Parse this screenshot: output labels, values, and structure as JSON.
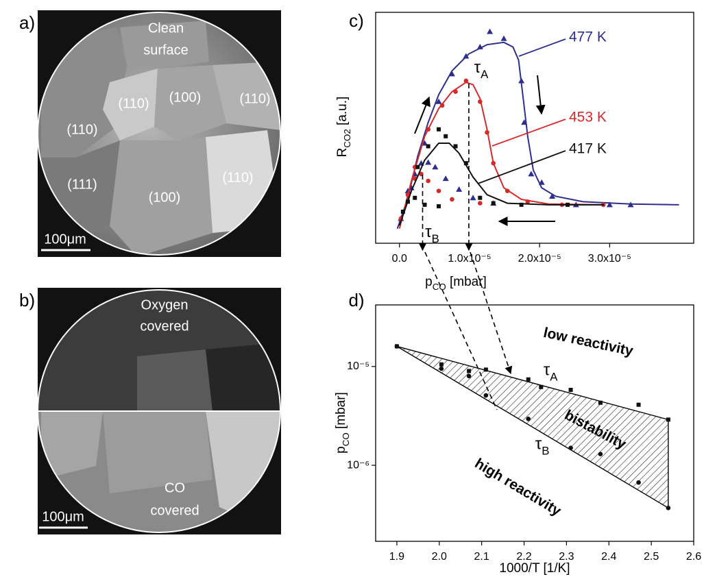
{
  "images": [
    {
      "letter": "a)",
      "caption": [
        "Clean",
        "surface"
      ],
      "grain_labels": [
        "(110)",
        "(100)",
        "(110)",
        "(110)",
        "(111)",
        "(100)",
        "(110)"
      ],
      "scale_bar": "100μm"
    },
    {
      "letter": "b)",
      "top_caption": [
        "Oxygen",
        "covered"
      ],
      "bottom_caption": [
        "CO",
        "covered"
      ],
      "scale_bar": "100μm"
    }
  ],
  "chart_data": [
    {
      "type": "scatter",
      "panel": "c)",
      "x_label": [
        "p",
        "CO",
        " [mbar]"
      ],
      "y_label": [
        "R",
        "CO2",
        " [a.u.]"
      ],
      "xlim": [
        -3.4e-06,
        4.2e-05
      ],
      "xticks": [
        {
          "value": 0,
          "label": "0.0"
        },
        {
          "value": 1e-05,
          "label": "1.0x10⁻⁵"
        },
        {
          "value": 2e-05,
          "label": "2.0x10⁻⁵"
        },
        {
          "value": 3e-05,
          "label": "3.0x10⁻⁵"
        }
      ],
      "ylim": [
        -0.5,
        2.5
      ],
      "series": [
        {
          "name": "477 K",
          "color": "#2e2e8c",
          "marker": "triangle",
          "x": [
            1.7e-06,
            3.6e-06,
            5.6e-06,
            7.5e-06,
            9.5e-06,
            1.15e-05,
            1.29e-05,
            1.49e-05,
            1.74e-05,
            1.78e-05,
            1.88e-05,
            2.03e-05,
            2.18e-05,
            2.52e-05,
            3e-05,
            3.3e-05,
            1.34e-05,
            1.05e-05,
            8.5e-06,
            6.6e-06,
            5.1e-06,
            4.1e-06,
            3.1e-06,
            2.2e-06,
            1.2e-06,
            2e-07
          ],
          "values": [
            0.22,
            0.8,
            1.34,
            1.7,
            1.93,
            2.05,
            2.25,
            2.16,
            1.61,
            1.07,
            0.4,
            0.29,
            0.11,
            0.0,
            0.0,
            0.0,
            0.02,
            0.09,
            0.2,
            0.34,
            0.49,
            0.55,
            0.54,
            0.4,
            0.18,
            -0.18
          ],
          "fit_x": [
            -3e-07,
            1.2e-06,
            2.6e-06,
            4.1e-06,
            5.6e-06,
            7.5e-06,
            9.9e-06,
            1.25e-05,
            1.49e-05,
            1.62e-05,
            1.7e-05,
            1.76e-05,
            1.83e-05,
            1.91e-05,
            2.03e-05,
            2.23e-05,
            2.62e-05,
            3.3e-05,
            3.99e-05
          ],
          "fit_values": [
            -0.31,
            0.09,
            0.63,
            1.07,
            1.43,
            1.74,
            1.96,
            2.08,
            2.11,
            2.05,
            1.88,
            1.43,
            0.89,
            0.45,
            0.22,
            0.11,
            0.04,
            0.01,
            0.0
          ]
        },
        {
          "name": "453 K",
          "color": "#d42a2a",
          "marker": "circle",
          "x": [
            2.2e-06,
            4.1e-06,
            6.1e-06,
            8e-06,
            9.5e-06,
            1.15e-05,
            1.25e-05,
            1.34e-05,
            1.54e-05,
            1.83e-05,
            2.32e-05,
            2.91e-05,
            1.15e-05,
            7.5e-06,
            5.6e-06,
            4.1e-06,
            3.1e-06,
            2.2e-06,
            1.2e-06,
            2e-07
          ],
          "values": [
            0.49,
            0.98,
            1.29,
            1.47,
            1.61,
            1.34,
            0.94,
            0.54,
            0.18,
            0.04,
            0.0,
            0.0,
            0.02,
            0.07,
            0.18,
            0.31,
            0.4,
            0.34,
            0.13,
            -0.18
          ],
          "fit_x": [
            0,
            1.7e-06,
            3.6e-06,
            5.6e-06,
            7.5e-06,
            9.5e-06,
            1.05e-05,
            1.15e-05,
            1.25e-05,
            1.34e-05,
            1.49e-05,
            1.74e-05,
            2.13e-05,
            2.92e-05
          ],
          "fit_values": [
            -0.31,
            0.31,
            0.89,
            1.25,
            1.47,
            1.59,
            1.56,
            1.38,
            0.98,
            0.54,
            0.22,
            0.07,
            0.01,
            0.0
          ]
        },
        {
          "name": "417 K",
          "color": "#111111",
          "marker": "square",
          "x": [
            2.6e-06,
            4.1e-06,
            5.6e-06,
            6.6e-06,
            8e-06,
            9.5e-06,
            1.15e-05,
            1.34e-05,
            1.74e-05,
            2.4e-05,
            5.6e-06,
            3.6e-06,
            2.2e-06,
            1.2e-06,
            5e-07
          ],
          "values": [
            0.49,
            0.76,
            0.98,
            0.89,
            0.76,
            0.54,
            0.09,
            0.02,
            0.0,
            0.0,
            -0.02,
            0.0,
            0.09,
            0.04,
            -0.09
          ],
          "fit_x": [
            0,
            1.7e-06,
            3.6e-06,
            5.6e-06,
            7.1e-06,
            8.5e-06,
            1.05e-05,
            1.25e-05,
            1.54e-05,
            2.13e-05,
            2.92e-05
          ],
          "fit_values": [
            -0.27,
            0.18,
            0.58,
            0.8,
            0.8,
            0.67,
            0.36,
            0.13,
            0.02,
            0.0,
            0.0
          ]
        }
      ],
      "annotations": [
        {
          "label": [
            "τ",
            "A"
          ],
          "x": 9.9e-06
        },
        {
          "label": [
            "τ",
            "B"
          ],
          "x": 3.3e-06
        }
      ]
    },
    {
      "type": "scatter",
      "panel": "d)",
      "x_label": [
        "1000/T [1/K]"
      ],
      "y_label": [
        "p",
        "CO",
        " [mbar]"
      ],
      "xlim": [
        1.85,
        2.6
      ],
      "xticks": [
        1.9,
        {
          "value": 2,
          "label": "2.0"
        },
        2.1,
        2.2,
        2.3,
        2.4,
        2.5,
        2.6
      ],
      "ylog": true,
      "ylim": [
        1.7e-07,
        4.2e-05
      ],
      "yticks": [
        {
          "value": 1e-05,
          "label": "10⁻⁵"
        },
        {
          "value": 1e-06,
          "label": "10⁻⁶"
        }
      ],
      "series": [
        {
          "color": "#111111",
          "marker": "square",
          "x": [
            1.9,
            2.005,
            2.07,
            2.11,
            2.21,
            2.24,
            2.31,
            2.38,
            2.47,
            2.54
          ],
          "values": [
            1.6e-05,
            1.05e-05,
            9e-06,
            9.3e-06,
            7.4e-06,
            6.2e-06,
            5.8e-06,
            4.3e-06,
            4.1e-06,
            2.9e-06
          ]
        },
        {
          "color": "#111111",
          "marker": "circle",
          "x": [
            1.9,
            2.005,
            2.07,
            2.11,
            2.21,
            2.31,
            2.38,
            2.47,
            2.54
          ],
          "values": [
            1.6e-05,
            9.5e-06,
            8e-06,
            5.1e-06,
            2.95e-06,
            1.5e-06,
            1.3e-06,
            6.7e-07,
            3.7e-07
          ]
        }
      ],
      "boundaries": [
        {
          "x": [
            1.9,
            2.54
          ],
          "values": [
            1.6e-05,
            2.9e-06
          ]
        },
        {
          "x": [
            1.9,
            2.54
          ],
          "values": [
            1.6e-05,
            3.7e-07
          ]
        }
      ],
      "hatch": true,
      "region_labels": [
        "low reactivity",
        "bistability",
        "high reactivity"
      ],
      "annotations": [
        {
          "label": [
            "τ",
            "A"
          ],
          "x": 2.21,
          "y": 7.4e-06
        },
        {
          "label": [
            "τ",
            "B"
          ],
          "x": 2.21,
          "y": 2.95e-06
        }
      ]
    }
  ]
}
